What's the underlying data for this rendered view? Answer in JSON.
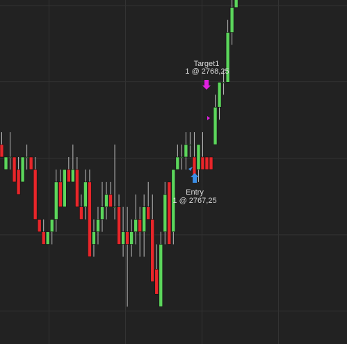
{
  "chart_data": {
    "type": "candlestick",
    "ylim": [
      2763.5,
      2770.4
    ],
    "hgrid": [
      2770.29,
      2768.76,
      2767.22,
      2765.69,
      2764.16
    ],
    "up_color": "#5cd65c",
    "down_color": "#e8262a",
    "wick_color": "#bdbdbd",
    "series": [
      {
        "open": [
          2767.5,
          2767.0,
          2767.25,
          2767.25,
          2767.0,
          2766.75,
          2767.25,
          2767.25,
          2767.0,
          2766.0,
          2765.75,
          2765.5,
          2765.75,
          2766.0,
          2766.75,
          2766.25,
          2767.0,
          2766.75,
          2767.0,
          2766.25,
          2766.25,
          2766.75,
          2765.5,
          2765.75,
          2766.0,
          2766.25,
          2766.5,
          2766.25,
          2766.25,
          2765.5,
          2765.75,
          2765.5,
          2765.75,
          2766.0,
          2765.75,
          2766.25,
          2766.0,
          2765.0,
          2764.25,
          2765.75,
          2766.75,
          2765.75,
          2767.0,
          2767.25,
          2767.25,
          2767.5,
          2767.25,
          2767.0,
          2767.25,
          2767.25,
          2767.25,
          2767.5,
          2768.25,
          2768.75,
          2768.75,
          2769.75,
          2770.25
        ],
        "high": [
          2767.75,
          2767.25,
          2767.75,
          2767.25,
          2767.25,
          2767.25,
          2767.5,
          2767.25,
          2767.25,
          2766.0,
          2766.0,
          2765.75,
          2766.0,
          2767.0,
          2767.0,
          2767.0,
          2767.25,
          2767.5,
          2767.25,
          2766.5,
          2767.0,
          2767.0,
          2766.0,
          2766.25,
          2766.75,
          2766.75,
          2766.75,
          2767.5,
          2766.5,
          2766.25,
          2766.25,
          2766.0,
          2766.5,
          2766.25,
          2766.5,
          2766.75,
          2766.5,
          2765.5,
          2765.75,
          2766.75,
          2766.75,
          2767.0,
          2767.5,
          2767.5,
          2767.75,
          2767.75,
          2767.75,
          2767.5,
          2767.75,
          2767.25,
          2767.25,
          2768.5,
          2768.75,
          2769.0,
          2770.0,
          2770.5,
          2771.0
        ],
        "low": [
          2767.25,
          2767.0,
          2767.0,
          2766.75,
          2766.5,
          2766.75,
          2767.0,
          2767.0,
          2766.0,
          2765.75,
          2765.5,
          2765.5,
          2765.5,
          2765.75,
          2766.25,
          2766.25,
          2766.75,
          2766.75,
          2766.25,
          2766.0,
          2766.0,
          2765.25,
          2765.25,
          2765.5,
          2765.75,
          2766.0,
          2766.25,
          2766.0,
          2765.5,
          2765.25,
          2764.25,
          2765.25,
          2765.5,
          2765.25,
          2765.25,
          2766.0,
          2764.75,
          2764.5,
          2764.25,
          2765.5,
          2765.5,
          2765.5,
          2767.0,
          2767.0,
          2767.0,
          2767.25,
          2766.75,
          2766.75,
          2767.0,
          2767.0,
          2767.0,
          2767.5,
          2768.0,
          2768.5,
          2768.75,
          2769.5,
          2770.25
        ],
        "close": [
          2767.25,
          2767.25,
          2767.25,
          2766.75,
          2766.5,
          2767.25,
          2767.25,
          2767.0,
          2766.0,
          2765.75,
          2765.5,
          2765.75,
          2766.0,
          2766.75,
          2766.25,
          2767.0,
          2766.75,
          2767.0,
          2766.25,
          2766.0,
          2766.75,
          2765.25,
          2765.75,
          2766.0,
          2766.25,
          2766.5,
          2766.25,
          2766.25,
          2765.5,
          2765.75,
          2765.5,
          2765.75,
          2766.0,
          2765.75,
          2766.25,
          2766.0,
          2764.75,
          2764.5,
          2765.5,
          2766.5,
          2765.5,
          2767.0,
          2767.25,
          2767.25,
          2767.5,
          2767.5,
          2766.75,
          2767.5,
          2767.0,
          2767.0,
          2767.0,
          2768.25,
          2768.75,
          2768.75,
          2769.75,
          2770.25,
          2770.75
        ]
      }
    ],
    "annotations": {
      "target_name": "Target1",
      "target_fill": "1 @ 2768,25",
      "entry_name": "Entry",
      "entry_fill": "1 @ 2767,25"
    }
  }
}
